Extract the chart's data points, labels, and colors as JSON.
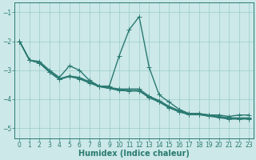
{
  "lines": [
    {
      "x": [
        0,
        1,
        2,
        3,
        4,
        5,
        6,
        7,
        8,
        9,
        10,
        11,
        12,
        13,
        14,
        15,
        16,
        17,
        18,
        19,
        20,
        21,
        22,
        23
      ],
      "y": [
        -2.0,
        -2.65,
        -2.7,
        -3.0,
        -3.25,
        -2.85,
        -3.0,
        -3.35,
        -3.55,
        -3.55,
        -2.5,
        -1.6,
        -1.15,
        -2.9,
        -3.85,
        -4.1,
        -4.35,
        -4.5,
        -4.5,
        -4.55,
        -4.55,
        -4.6,
        -4.55,
        -4.55
      ],
      "color": "#2a7a72",
      "linewidth": 1.0,
      "marker": "+",
      "markersize": 4
    },
    {
      "x": [
        0,
        1,
        2,
        3,
        4,
        5,
        6,
        7,
        8,
        9,
        10,
        11,
        12,
        13,
        14,
        15,
        16,
        17,
        18,
        19,
        20,
        21,
        22,
        23
      ],
      "y": [
        -2.0,
        -2.65,
        -2.75,
        -3.05,
        -3.3,
        -3.2,
        -3.25,
        -3.4,
        -3.55,
        -3.6,
        -3.65,
        -3.65,
        -3.65,
        -3.9,
        -4.05,
        -4.25,
        -4.4,
        -4.5,
        -4.5,
        -4.55,
        -4.6,
        -4.65,
        -4.65,
        -4.65
      ],
      "color": "#2a7a72",
      "linewidth": 1.0,
      "marker": "+",
      "markersize": 4
    },
    {
      "x": [
        0,
        1,
        2,
        3,
        4,
        5,
        6,
        7,
        8,
        9,
        10,
        11,
        12,
        13,
        14,
        15,
        16,
        17,
        18,
        19,
        20,
        21,
        22,
        23
      ],
      "y": [
        -2.0,
        -2.65,
        -2.75,
        -3.05,
        -3.3,
        -3.2,
        -3.28,
        -3.42,
        -3.56,
        -3.62,
        -3.68,
        -3.7,
        -3.7,
        -3.93,
        -4.08,
        -4.28,
        -4.42,
        -4.52,
        -4.52,
        -4.57,
        -4.62,
        -4.67,
        -4.67,
        -4.67
      ],
      "color": "#2a7a72",
      "linewidth": 1.0,
      "marker": "+",
      "markersize": 4
    },
    {
      "x": [
        0,
        1,
        2,
        3,
        4,
        5,
        6,
        7,
        8,
        9,
        10,
        11,
        12,
        13,
        14,
        15,
        16,
        17,
        18,
        19,
        20,
        21,
        22,
        23
      ],
      "y": [
        -2.0,
        -2.65,
        -2.75,
        -3.07,
        -3.32,
        -3.22,
        -3.3,
        -3.44,
        -3.57,
        -3.63,
        -3.7,
        -3.72,
        -3.72,
        -3.95,
        -4.1,
        -4.3,
        -4.44,
        -4.54,
        -4.54,
        -4.59,
        -4.64,
        -4.69,
        -4.69,
        -4.69
      ],
      "color": "#2a7a72",
      "linewidth": 1.0,
      "marker": "+",
      "markersize": 4
    }
  ],
  "background_color": "#cce8e8",
  "grid_color": "#99cccc",
  "axis_color": "#2a7a72",
  "xlabel": "Humidex (Indice chaleur)",
  "xlabel_fontsize": 7,
  "xlim": [
    -0.5,
    23.5
  ],
  "ylim": [
    -5.35,
    -0.65
  ],
  "yticks": [
    -5,
    -4,
    -3,
    -2,
    -1
  ],
  "xticks": [
    0,
    1,
    2,
    3,
    4,
    5,
    6,
    7,
    8,
    9,
    10,
    11,
    12,
    13,
    14,
    15,
    16,
    17,
    18,
    19,
    20,
    21,
    22,
    23
  ],
  "tick_fontsize": 5.5
}
